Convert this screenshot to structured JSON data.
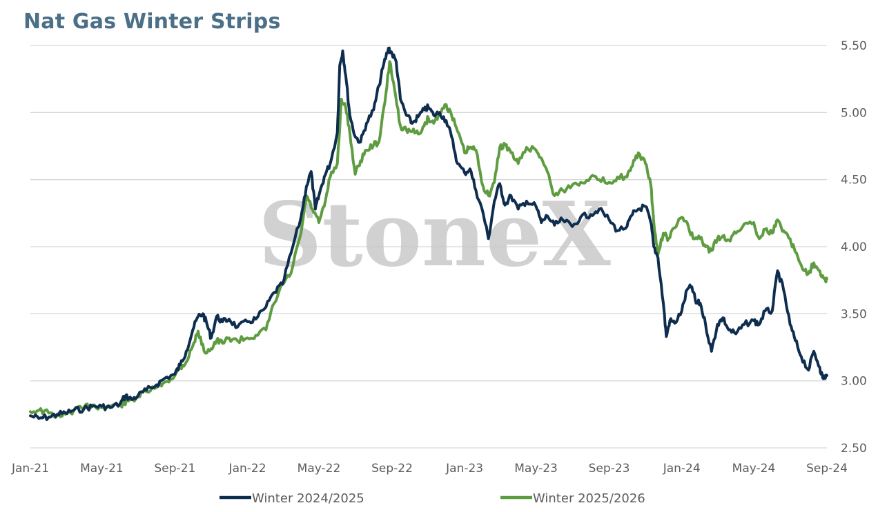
{
  "title": "Nat Gas Winter Strips",
  "watermark": "StoneX",
  "watermark_mark": "®",
  "colors": {
    "series_1": "#0e2d4f",
    "series_2": "#5e9c41",
    "grid": "#d6d6d6",
    "title": "#4a6f86"
  },
  "chart_data": {
    "type": "line",
    "title": "Nat Gas Winter Strips",
    "xlabel": "",
    "ylabel": "",
    "ylim": [
      2.5,
      5.5
    ],
    "yaxis_side": "right",
    "grid": "horizontal",
    "legend_position": "bottom",
    "y_ticks": [
      "2.50",
      "3.00",
      "3.50",
      "4.00",
      "4.50",
      "5.00",
      "5.50"
    ],
    "x_ticks": [
      "Jan-21",
      "May-21",
      "Sep-21",
      "Jan-22",
      "May-22",
      "Sep-22",
      "Jan-23",
      "May-23",
      "Sep-23",
      "Jan-24",
      "May-24",
      "Sep-24"
    ],
    "xlim": [
      "2021-01",
      "2024-09"
    ],
    "series": [
      {
        "name": "Winter 2024/2025",
        "points": [
          [
            "2021-01-01",
            2.74
          ],
          [
            "2021-01-15",
            2.72
          ],
          [
            "2021-02-01",
            2.73
          ],
          [
            "2021-02-15",
            2.75
          ],
          [
            "2021-03-01",
            2.76
          ],
          [
            "2021-03-15",
            2.78
          ],
          [
            "2021-04-01",
            2.79
          ],
          [
            "2021-04-15",
            2.81
          ],
          [
            "2021-05-01",
            2.81
          ],
          [
            "2021-05-15",
            2.8
          ],
          [
            "2021-06-01",
            2.83
          ],
          [
            "2021-06-10",
            2.89
          ],
          [
            "2021-06-20",
            2.86
          ],
          [
            "2021-07-01",
            2.89
          ],
          [
            "2021-07-15",
            2.93
          ],
          [
            "2021-08-01",
            2.97
          ],
          [
            "2021-08-15",
            3.02
          ],
          [
            "2021-09-01",
            3.05
          ],
          [
            "2021-09-10",
            3.12
          ],
          [
            "2021-09-20",
            3.22
          ],
          [
            "2021-10-01",
            3.38
          ],
          [
            "2021-10-10",
            3.48
          ],
          [
            "2021-10-18",
            3.5
          ],
          [
            "2021-10-25",
            3.42
          ],
          [
            "2021-11-01",
            3.32
          ],
          [
            "2021-11-10",
            3.48
          ],
          [
            "2021-11-20",
            3.44
          ],
          [
            "2021-12-01",
            3.46
          ],
          [
            "2021-12-15",
            3.4
          ],
          [
            "2022-01-01",
            3.44
          ],
          [
            "2022-01-15",
            3.46
          ],
          [
            "2022-02-01",
            3.55
          ],
          [
            "2022-02-15",
            3.66
          ],
          [
            "2022-03-01",
            3.72
          ],
          [
            "2022-03-15",
            3.95
          ],
          [
            "2022-04-01",
            4.22
          ],
          [
            "2022-04-10",
            4.45
          ],
          [
            "2022-04-18",
            4.56
          ],
          [
            "2022-04-25",
            4.28
          ],
          [
            "2022-05-01",
            4.38
          ],
          [
            "2022-05-10",
            4.52
          ],
          [
            "2022-05-20",
            4.62
          ],
          [
            "2022-06-01",
            4.85
          ],
          [
            "2022-06-05",
            5.35
          ],
          [
            "2022-06-10",
            5.46
          ],
          [
            "2022-06-15",
            5.28
          ],
          [
            "2022-06-22",
            4.98
          ],
          [
            "2022-07-01",
            4.82
          ],
          [
            "2022-07-10",
            4.78
          ],
          [
            "2022-07-20",
            4.92
          ],
          [
            "2022-08-01",
            5.02
          ],
          [
            "2022-08-10",
            5.2
          ],
          [
            "2022-08-18",
            5.36
          ],
          [
            "2022-08-26",
            5.48
          ],
          [
            "2022-09-01",
            5.44
          ],
          [
            "2022-09-08",
            5.38
          ],
          [
            "2022-09-15",
            5.1
          ],
          [
            "2022-09-25",
            4.98
          ],
          [
            "2022-10-05",
            4.92
          ],
          [
            "2022-10-15",
            4.97
          ],
          [
            "2022-10-25",
            5.02
          ],
          [
            "2022-11-01",
            5.04
          ],
          [
            "2022-11-10",
            4.98
          ],
          [
            "2022-11-20",
            5.0
          ],
          [
            "2022-12-01",
            4.94
          ],
          [
            "2022-12-10",
            4.82
          ],
          [
            "2022-12-20",
            4.62
          ],
          [
            "2023-01-01",
            4.55
          ],
          [
            "2023-01-10",
            4.58
          ],
          [
            "2023-01-20",
            4.42
          ],
          [
            "2023-02-01",
            4.25
          ],
          [
            "2023-02-10",
            4.06
          ],
          [
            "2023-02-20",
            4.34
          ],
          [
            "2023-03-01",
            4.47
          ],
          [
            "2023-03-10",
            4.31
          ],
          [
            "2023-03-20",
            4.38
          ],
          [
            "2023-04-01",
            4.28
          ],
          [
            "2023-04-15",
            4.34
          ],
          [
            "2023-05-01",
            4.3
          ],
          [
            "2023-05-10",
            4.18
          ],
          [
            "2023-05-20",
            4.23
          ],
          [
            "2023-06-01",
            4.16
          ],
          [
            "2023-06-15",
            4.2
          ],
          [
            "2023-07-01",
            4.15
          ],
          [
            "2023-07-15",
            4.22
          ],
          [
            "2023-08-01",
            4.24
          ],
          [
            "2023-08-15",
            4.28
          ],
          [
            "2023-09-01",
            4.2
          ],
          [
            "2023-09-15",
            4.12
          ],
          [
            "2023-10-01",
            4.15
          ],
          [
            "2023-10-10",
            4.24
          ],
          [
            "2023-10-20",
            4.28
          ],
          [
            "2023-11-01",
            4.3
          ],
          [
            "2023-11-10",
            4.18
          ],
          [
            "2023-11-15",
            4.0
          ],
          [
            "2023-11-22",
            3.92
          ],
          [
            "2023-12-01",
            3.58
          ],
          [
            "2023-12-06",
            3.33
          ],
          [
            "2023-12-12",
            3.45
          ],
          [
            "2023-12-20",
            3.43
          ],
          [
            "2024-01-01",
            3.52
          ],
          [
            "2024-01-10",
            3.68
          ],
          [
            "2024-01-18",
            3.7
          ],
          [
            "2024-01-25",
            3.58
          ],
          [
            "2024-02-01",
            3.58
          ],
          [
            "2024-02-10",
            3.42
          ],
          [
            "2024-02-20",
            3.22
          ],
          [
            "2024-03-01",
            3.42
          ],
          [
            "2024-03-10",
            3.47
          ],
          [
            "2024-03-20",
            3.38
          ],
          [
            "2024-04-01",
            3.35
          ],
          [
            "2024-04-15",
            3.42
          ],
          [
            "2024-05-01",
            3.45
          ],
          [
            "2024-05-10",
            3.42
          ],
          [
            "2024-05-20",
            3.52
          ],
          [
            "2024-06-01",
            3.52
          ],
          [
            "2024-06-10",
            3.82
          ],
          [
            "2024-06-20",
            3.68
          ],
          [
            "2024-07-01",
            3.42
          ],
          [
            "2024-07-10",
            3.3
          ],
          [
            "2024-07-20",
            3.18
          ],
          [
            "2024-08-01",
            3.08
          ],
          [
            "2024-08-10",
            3.22
          ],
          [
            "2024-08-20",
            3.1
          ],
          [
            "2024-08-25",
            3.02
          ],
          [
            "2024-09-01",
            3.04
          ]
        ]
      },
      {
        "name": "Winter 2025/2026",
        "points": [
          [
            "2021-01-01",
            2.77
          ],
          [
            "2021-01-15",
            2.78
          ],
          [
            "2021-02-01",
            2.76
          ],
          [
            "2021-02-15",
            2.74
          ],
          [
            "2021-03-01",
            2.75
          ],
          [
            "2021-03-15",
            2.78
          ],
          [
            "2021-04-01",
            2.8
          ],
          [
            "2021-04-15",
            2.82
          ],
          [
            "2021-05-01",
            2.8
          ],
          [
            "2021-05-15",
            2.81
          ],
          [
            "2021-06-01",
            2.82
          ],
          [
            "2021-06-15",
            2.85
          ],
          [
            "2021-07-01",
            2.88
          ],
          [
            "2021-07-15",
            2.92
          ],
          [
            "2021-08-01",
            2.95
          ],
          [
            "2021-08-15",
            2.99
          ],
          [
            "2021-09-01",
            3.04
          ],
          [
            "2021-09-10",
            3.1
          ],
          [
            "2021-09-20",
            3.14
          ],
          [
            "2021-10-01",
            3.26
          ],
          [
            "2021-10-10",
            3.37
          ],
          [
            "2021-10-20",
            3.22
          ],
          [
            "2021-11-01",
            3.24
          ],
          [
            "2021-11-10",
            3.3
          ],
          [
            "2021-11-20",
            3.28
          ],
          [
            "2021-12-01",
            3.32
          ],
          [
            "2021-12-15",
            3.3
          ],
          [
            "2022-01-01",
            3.32
          ],
          [
            "2022-01-15",
            3.34
          ],
          [
            "2022-02-01",
            3.38
          ],
          [
            "2022-02-15",
            3.58
          ],
          [
            "2022-03-01",
            3.72
          ],
          [
            "2022-03-15",
            3.8
          ],
          [
            "2022-04-01",
            4.1
          ],
          [
            "2022-04-10",
            4.38
          ],
          [
            "2022-04-20",
            4.28
          ],
          [
            "2022-05-01",
            4.18
          ],
          [
            "2022-05-10",
            4.3
          ],
          [
            "2022-05-20",
            4.52
          ],
          [
            "2022-06-01",
            4.62
          ],
          [
            "2022-06-08",
            5.1
          ],
          [
            "2022-06-15",
            5.04
          ],
          [
            "2022-06-22",
            4.85
          ],
          [
            "2022-07-01",
            4.54
          ],
          [
            "2022-07-10",
            4.64
          ],
          [
            "2022-07-20",
            4.72
          ],
          [
            "2022-08-01",
            4.76
          ],
          [
            "2022-08-10",
            4.78
          ],
          [
            "2022-08-20",
            5.08
          ],
          [
            "2022-08-28",
            5.38
          ],
          [
            "2022-09-05",
            5.18
          ],
          [
            "2022-09-15",
            4.9
          ],
          [
            "2022-09-25",
            4.87
          ],
          [
            "2022-10-05",
            4.86
          ],
          [
            "2022-10-15",
            4.84
          ],
          [
            "2022-10-25",
            4.9
          ],
          [
            "2022-11-01",
            4.96
          ],
          [
            "2022-11-10",
            4.92
          ],
          [
            "2022-11-20",
            5.0
          ],
          [
            "2022-12-01",
            5.06
          ],
          [
            "2022-12-10",
            4.98
          ],
          [
            "2022-12-20",
            4.86
          ],
          [
            "2023-01-01",
            4.7
          ],
          [
            "2023-01-10",
            4.74
          ],
          [
            "2023-01-20",
            4.72
          ],
          [
            "2023-02-01",
            4.45
          ],
          [
            "2023-02-10",
            4.38
          ],
          [
            "2023-02-20",
            4.48
          ],
          [
            "2023-03-01",
            4.74
          ],
          [
            "2023-03-10",
            4.76
          ],
          [
            "2023-03-20",
            4.7
          ],
          [
            "2023-04-01",
            4.62
          ],
          [
            "2023-04-15",
            4.74
          ],
          [
            "2023-05-01",
            4.72
          ],
          [
            "2023-05-10",
            4.66
          ],
          [
            "2023-05-20",
            4.56
          ],
          [
            "2023-06-01",
            4.38
          ],
          [
            "2023-06-15",
            4.42
          ],
          [
            "2023-07-01",
            4.46
          ],
          [
            "2023-07-15",
            4.48
          ],
          [
            "2023-08-01",
            4.52
          ],
          [
            "2023-08-15",
            4.5
          ],
          [
            "2023-09-01",
            4.48
          ],
          [
            "2023-09-15",
            4.52
          ],
          [
            "2023-10-01",
            4.52
          ],
          [
            "2023-10-10",
            4.6
          ],
          [
            "2023-10-20",
            4.7
          ],
          [
            "2023-11-01",
            4.62
          ],
          [
            "2023-11-10",
            4.46
          ],
          [
            "2023-11-15",
            4.18
          ],
          [
            "2023-11-22",
            3.94
          ],
          [
            "2023-12-01",
            4.1
          ],
          [
            "2023-12-10",
            4.06
          ],
          [
            "2023-12-20",
            4.14
          ],
          [
            "2024-01-01",
            4.22
          ],
          [
            "2024-01-10",
            4.18
          ],
          [
            "2024-01-20",
            4.06
          ],
          [
            "2024-02-01",
            4.06
          ],
          [
            "2024-02-10",
            4.0
          ],
          [
            "2024-02-20",
            3.97
          ],
          [
            "2024-03-01",
            4.06
          ],
          [
            "2024-03-10",
            4.08
          ],
          [
            "2024-03-20",
            4.05
          ],
          [
            "2024-04-01",
            4.1
          ],
          [
            "2024-04-15",
            4.17
          ],
          [
            "2024-05-01",
            4.18
          ],
          [
            "2024-05-10",
            4.06
          ],
          [
            "2024-05-20",
            4.13
          ],
          [
            "2024-06-01",
            4.1
          ],
          [
            "2024-06-10",
            4.2
          ],
          [
            "2024-06-20",
            4.12
          ],
          [
            "2024-07-01",
            4.06
          ],
          [
            "2024-07-10",
            3.96
          ],
          [
            "2024-07-20",
            3.86
          ],
          [
            "2024-08-01",
            3.8
          ],
          [
            "2024-08-10",
            3.88
          ],
          [
            "2024-08-20",
            3.82
          ],
          [
            "2024-08-28",
            3.76
          ],
          [
            "2024-09-01",
            3.76
          ]
        ]
      }
    ]
  }
}
